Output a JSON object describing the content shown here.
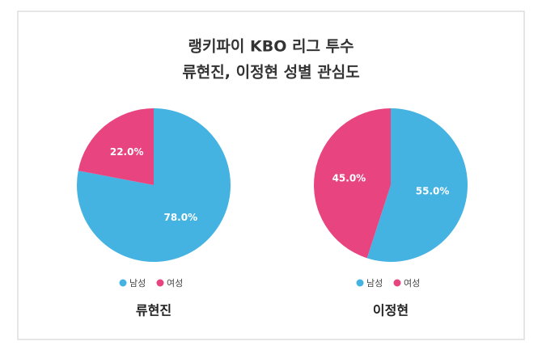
{
  "title": [
    "랭키파이 KBO 리그 투수",
    "류현진, 이정현 성별 관심도"
  ],
  "chart_data": [
    {
      "type": "pie",
      "title": "류현진",
      "categories": [
        "남성",
        "여성"
      ],
      "values": [
        78.0,
        22.0
      ],
      "value_labels": [
        "78.0%",
        "22.0%"
      ],
      "colors": [
        "#45b3e2",
        "#e84580"
      ]
    },
    {
      "type": "pie",
      "title": "이정현",
      "categories": [
        "남성",
        "여성"
      ],
      "values": [
        55.0,
        45.0
      ],
      "value_labels": [
        "55.0%",
        "45.0%"
      ],
      "colors": [
        "#45b3e2",
        "#e84580"
      ]
    }
  ]
}
